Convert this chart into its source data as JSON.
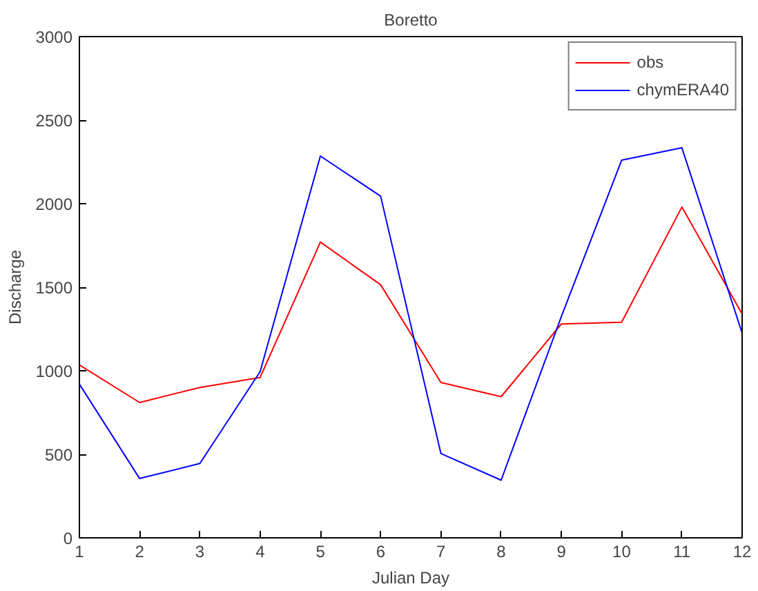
{
  "chart_data": {
    "type": "line",
    "title": "Boretto",
    "xlabel": "Julian Day",
    "ylabel": "Discharge",
    "x": [
      1,
      2,
      3,
      4,
      5,
      6,
      7,
      8,
      9,
      10,
      11,
      12
    ],
    "xlim": [
      1,
      12
    ],
    "xticks": [
      1,
      2,
      3,
      4,
      5,
      6,
      7,
      8,
      9,
      10,
      11,
      12
    ],
    "ylim": [
      0,
      3000
    ],
    "yticks": [
      0,
      500,
      1000,
      1500,
      2000,
      2500,
      3000
    ],
    "grid": false,
    "legend": "top right",
    "marker": "none",
    "line_style": "solid",
    "series": [
      {
        "name": "obs",
        "color": "#ff0000",
        "values": [
          1035,
          810,
          900,
          960,
          1770,
          1515,
          930,
          845,
          1280,
          1290,
          1980,
          1340
        ]
      },
      {
        "name": "chymERA40",
        "color": "#0000ff",
        "values": [
          920,
          355,
          445,
          995,
          2285,
          2045,
          505,
          345,
          1325,
          2260,
          2335,
          1225
        ]
      }
    ]
  }
}
